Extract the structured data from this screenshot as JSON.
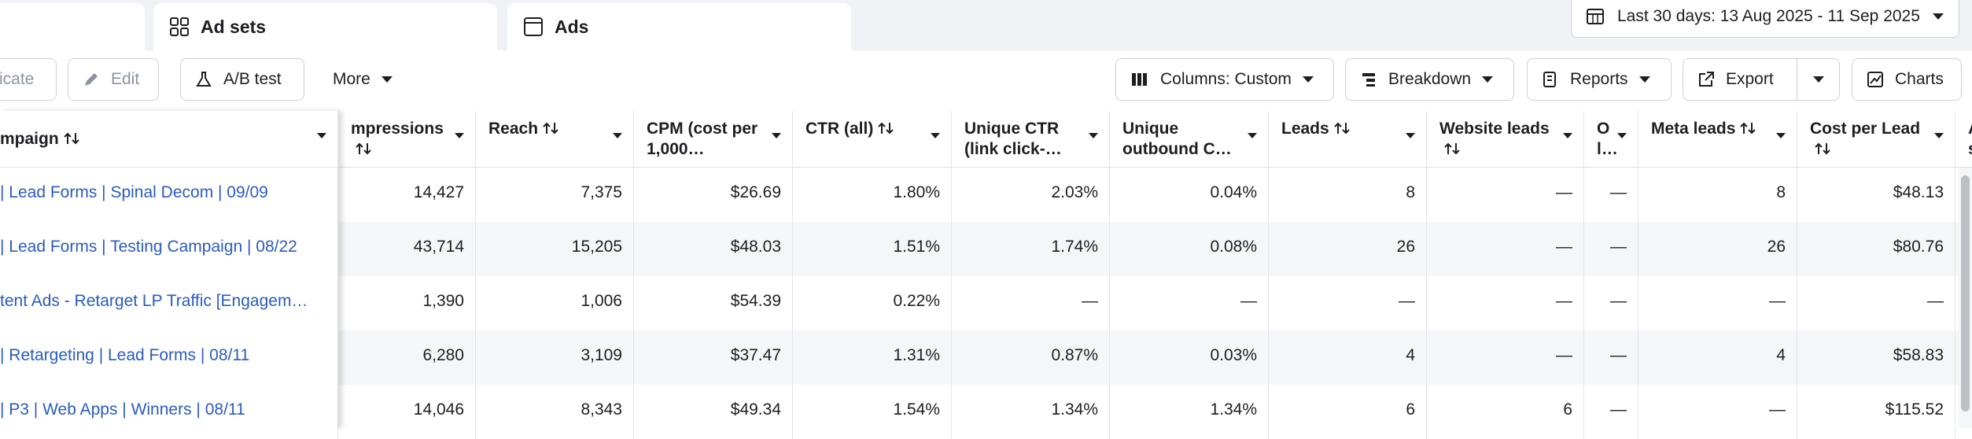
{
  "tabs": [
    "Ad sets",
    "Ads"
  ],
  "date_range": "Last 30 days: 13 Aug 2025 - 11 Sep 2025",
  "toolbar": {
    "left": [
      "icate",
      "Edit",
      "A/B test",
      "More"
    ],
    "right": [
      "Columns: Custom",
      "Breakdown",
      "Reports",
      "Export",
      "Charts"
    ]
  },
  "table": {
    "headers": [
      {
        "label": "mpaign",
        "sort": true
      },
      {
        "label": "mpressions",
        "sort": true
      },
      {
        "label": "Reach",
        "sort": true
      },
      {
        "label": "CPM (cost per 1,000…",
        "sort": false
      },
      {
        "label": "CTR (all)",
        "sort": true
      },
      {
        "label": "Unique CTR (link click-…",
        "sort": false
      },
      {
        "label": "Unique outbound C…",
        "sort": false
      },
      {
        "label": "Leads",
        "sort": true
      },
      {
        "label": "Website leads",
        "sort": true
      },
      {
        "label": "O l…",
        "sort": false
      },
      {
        "label": "Meta leads",
        "sort": true
      },
      {
        "label": "Cost per Lead",
        "sort": true
      },
      {
        "label": "A s",
        "sort": false
      }
    ],
    "rows": [
      [
        "| Lead Forms | Spinal Decom | 09/09",
        "14,427",
        "7,375",
        "$26.69",
        "1.80%",
        "2.03%",
        "0.04%",
        "8",
        "—",
        "—",
        "8",
        "$48.13"
      ],
      [
        "| Lead Forms | Testing Campaign | 08/22",
        "43,714",
        "15,205",
        "$48.03",
        "1.51%",
        "1.74%",
        "0.08%",
        "26",
        "—",
        "—",
        "26",
        "$80.76"
      ],
      [
        "tent Ads - Retarget LP Traffic [Engagem…",
        "1,390",
        "1,006",
        "$54.39",
        "0.22%",
        "—",
        "—",
        "—",
        "—",
        "—",
        "—",
        "—"
      ],
      [
        "| Retargeting | Lead Forms | 08/11",
        "6,280",
        "3,109",
        "$37.47",
        "1.31%",
        "0.87%",
        "0.03%",
        "4",
        "—",
        "—",
        "4",
        "$58.83"
      ],
      [
        "| P3 | Web Apps | Winners | 08/11",
        "14,046",
        "8,343",
        "$49.34",
        "1.54%",
        "1.34%",
        "1.34%",
        "6",
        "6",
        "—",
        "—",
        "$115.52"
      ]
    ]
  }
}
